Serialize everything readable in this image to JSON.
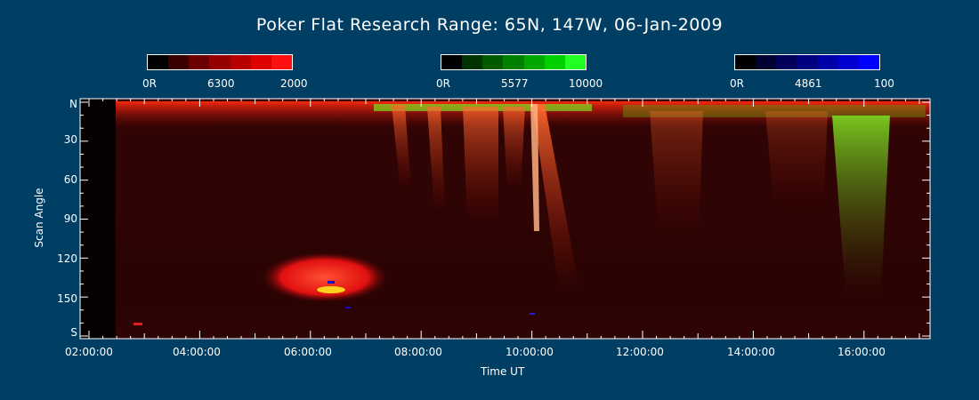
{
  "chart_data": {
    "type": "heatmap",
    "title": "Poker Flat Research Range: 65N, 147W, 06-Jan-2009",
    "xlabel": "Time UT",
    "ylabel": "Scan Angle",
    "x_ticks": [
      "02:00:00",
      "04:00:00",
      "06:00:00",
      "08:00:00",
      "10:00:00",
      "12:00:00",
      "14:00:00",
      "16:00:00"
    ],
    "y_ticks": [
      "N",
      "30",
      "60",
      "90",
      "120",
      "150",
      "S"
    ],
    "colorbars": [
      {
        "name": "6300",
        "min_label": "0R",
        "max_label": "2000",
        "color": "#ff0000",
        "stops": [
          "#000000",
          "#3a0000",
          "#6a0000",
          "#960000",
          "#b80000",
          "#dc0000",
          "#ff1010"
        ]
      },
      {
        "name": "5577",
        "min_label": "0R",
        "max_label": "10000",
        "color": "#00ff00",
        "stops": [
          "#000000",
          "#003300",
          "#005a00",
          "#008000",
          "#00a800",
          "#00d000",
          "#22ff22"
        ]
      },
      {
        "name": "4861",
        "min_label": "0R",
        "max_label": "100",
        "color": "#0000ff",
        "stops": [
          "#000000",
          "#000033",
          "#00005a",
          "#000080",
          "#0000a8",
          "#0000d0",
          "#0000ff"
        ]
      }
    ],
    "features": [
      {
        "label": "6300 emission near north horizon",
        "t_start": 2.6,
        "t_end": 17.4,
        "angle": 5
      },
      {
        "label": "Green arc band",
        "t_start": 7.4,
        "t_end": 11.0,
        "angle": 4
      },
      {
        "label": "Bright discrete arc",
        "t_start": 9.9,
        "t_end": 10.3,
        "angle_start": 0,
        "angle_end": 135
      },
      {
        "label": "Green auroral curtain",
        "t_start": 15.6,
        "t_end": 16.1,
        "angle_start": 20,
        "angle_end": 130
      },
      {
        "label": "Bright red patch",
        "t_start": 5.6,
        "t_end": 7.0,
        "angle_start": 120,
        "angle_end": 145
      }
    ]
  }
}
